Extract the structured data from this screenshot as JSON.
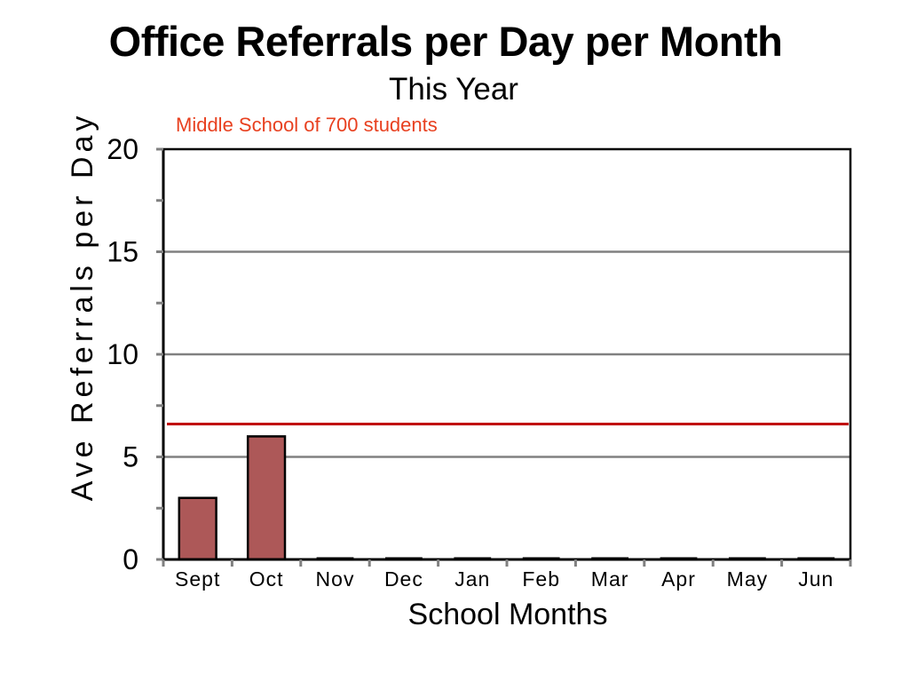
{
  "chart_data": {
    "type": "bar",
    "title": "Office Referrals per Day per Month",
    "subtitle": "This Year",
    "xlabel": "School Months",
    "ylabel": "Ave Referrals per Day",
    "categories": [
      "Sept",
      "Oct",
      "Nov",
      "Dec",
      "Jan",
      "Feb",
      "Mar",
      "Apr",
      "May",
      "Jun"
    ],
    "values": [
      3,
      6,
      0,
      0,
      0,
      0,
      0,
      0,
      0,
      0
    ],
    "ylim": [
      0,
      20
    ],
    "yticks": [
      0,
      5,
      10,
      15,
      20
    ],
    "grid": true,
    "reference_line": {
      "label": "Middle School of 700 students",
      "value": 6.6,
      "color": "#c00000"
    },
    "colors": {
      "bar_fill": "#ad5858",
      "bar_stroke": "#000000",
      "gridline": "#808080",
      "axis": "#000000",
      "ref_label": "#e8401f"
    }
  }
}
